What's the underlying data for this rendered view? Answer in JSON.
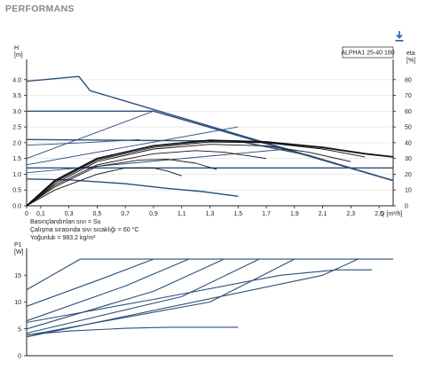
{
  "page": {
    "title": "PERFORMANS",
    "download_icon": "download-icon"
  },
  "info": {
    "line1": "Basınçlandırılan sıvı = Su",
    "line2": "Çalışma sırasında sıvı sıcaklığı = 60 °C",
    "line3": "Yoğunluk = 983.2 kg/m³"
  },
  "colors": {
    "curve_blue": "#2a4f7a",
    "efficiency": "#111111",
    "axis": "#222222",
    "grid": "#dddddd"
  },
  "chart_data": [
    {
      "type": "line",
      "model_label": "ALPHA1 25-40 180",
      "ylabel": "H\n[m]",
      "ylabel_right": "eta\n[%]",
      "xlabel": "Q [m³/h]",
      "xlim": [
        0,
        2.6
      ],
      "ylim": [
        0,
        4.5
      ],
      "y2lim": [
        0,
        90
      ],
      "x_ticks": [
        "0",
        "0,1",
        "0,3",
        "0,5",
        "0,7",
        "0,9",
        "1,1",
        "1,3",
        "1,5",
        "1,7",
        "1,9",
        "2,1",
        "2,3",
        "2,5"
      ],
      "x_tick_values": [
        0,
        0.1,
        0.3,
        0.5,
        0.7,
        0.9,
        1.1,
        1.3,
        1.5,
        1.7,
        1.9,
        2.1,
        2.3,
        2.5
      ],
      "y_ticks": [
        0.0,
        0.5,
        1.0,
        1.5,
        2.0,
        2.5,
        3.0,
        3.5,
        4.0
      ],
      "y_tick_labels": [
        "0.0",
        "0.5",
        "1.0",
        "1.5",
        "2.0",
        "2.5",
        "3.0",
        "3.5",
        "4.0"
      ],
      "y2_ticks": [
        0,
        10,
        20,
        30,
        40,
        50,
        60,
        70,
        80
      ],
      "curves": [
        {
          "role": "head",
          "x": [
            0,
            0.37,
            0.45,
            2.6
          ],
          "y": [
            3.95,
            4.1,
            3.65,
            0.8
          ]
        },
        {
          "role": "head",
          "x": [
            0,
            0.9,
            2.6
          ],
          "y": [
            3.0,
            3.0,
            0.8
          ]
        },
        {
          "role": "head",
          "x": [
            0,
            1.5,
            2.0,
            2.6
          ],
          "y": [
            2.1,
            2.05,
            1.6,
            0.8
          ]
        },
        {
          "role": "head",
          "x": [
            0,
            2.6
          ],
          "y": [
            1.2,
            1.2
          ]
        },
        {
          "role": "head",
          "x": [
            0,
            0.3,
            0.7,
            1.0,
            1.25,
            1.5
          ],
          "y": [
            0.85,
            0.82,
            0.7,
            0.55,
            0.45,
            0.3
          ]
        },
        {
          "role": "system",
          "x": [
            0,
            0.9
          ],
          "y": [
            1.5,
            3.0
          ]
        },
        {
          "role": "system",
          "x": [
            0,
            1.5
          ],
          "y": [
            1.3,
            2.5
          ]
        },
        {
          "role": "system",
          "x": [
            0,
            1.85
          ],
          "y": [
            1.05,
            1.8
          ]
        },
        {
          "role": "system",
          "x": [
            0,
            0.4,
            0.8
          ],
          "y": [
            1.92,
            2.0,
            2.1
          ]
        },
        {
          "role": "efficiency",
          "x": [
            0,
            0.2,
            0.5,
            0.9,
            1.3,
            1.7,
            2.1,
            2.4,
            2.6
          ],
          "y2": [
            0,
            16,
            30,
            38,
            41.5,
            40.5,
            37,
            33,
            31
          ]
        },
        {
          "role": "efficiency",
          "x": [
            0,
            0.2,
            0.5,
            0.9,
            1.3,
            1.7,
            2.1,
            2.4
          ],
          "y2": [
            0,
            15,
            29,
            37,
            40.5,
            40,
            36,
            31
          ]
        },
        {
          "role": "efficiency",
          "x": [
            0,
            0.2,
            0.5,
            0.9,
            1.3,
            1.7,
            2.0,
            2.3
          ],
          "y2": [
            0,
            14,
            28,
            36,
            39,
            38,
            34,
            28
          ]
        },
        {
          "role": "efficiency",
          "x": [
            0,
            0.2,
            0.5,
            0.9,
            1.2,
            1.4,
            1.7
          ],
          "y2": [
            0,
            13,
            26,
            33,
            35,
            34,
            30
          ]
        },
        {
          "role": "efficiency",
          "x": [
            0,
            0.2,
            0.5,
            0.8,
            1.0,
            1.2,
            1.35
          ],
          "y2": [
            0,
            12,
            25,
            29,
            29.5,
            27,
            23
          ]
        },
        {
          "role": "efficiency",
          "x": [
            0,
            0.2,
            0.5,
            0.7,
            0.9,
            1.0,
            1.1
          ],
          "y2": [
            0,
            10,
            20,
            24,
            24,
            22,
            19
          ]
        }
      ]
    },
    {
      "type": "line",
      "ylabel": "P1\n[W]",
      "xlim": [
        0,
        2.6
      ],
      "ylim": [
        0,
        20
      ],
      "y_ticks": [
        0,
        5,
        10,
        15
      ],
      "y_tick_labels": [
        "0",
        "5",
        "10",
        "15"
      ],
      "curves": [
        {
          "x": [
            0,
            0.38,
            2.6
          ],
          "y": [
            12.3,
            18,
            18
          ]
        },
        {
          "x": [
            0,
            0.55,
            0.9
          ],
          "y": [
            9.2,
            14.5,
            18
          ]
        },
        {
          "x": [
            0,
            0.7,
            1.15
          ],
          "y": [
            6.5,
            13,
            18
          ]
        },
        {
          "x": [
            0,
            0.9,
            1.4
          ],
          "y": [
            5.0,
            12,
            18
          ]
        },
        {
          "x": [
            0,
            1.1,
            1.65
          ],
          "y": [
            4.2,
            11,
            18
          ]
        },
        {
          "x": [
            0,
            1.3,
            1.9
          ],
          "y": [
            3.8,
            10,
            18
          ]
        },
        {
          "x": [
            0,
            2.1,
            2.35
          ],
          "y": [
            3.5,
            15,
            18
          ]
        },
        {
          "x": [
            0,
            0.9,
            1.8,
            2.2,
            2.45
          ],
          "y": [
            6.2,
            10.5,
            15,
            16,
            16
          ]
        },
        {
          "x": [
            0,
            0.3,
            0.7,
            1.0,
            1.5
          ],
          "y": [
            3.9,
            4.6,
            5.1,
            5.3,
            5.3
          ]
        }
      ]
    }
  ]
}
